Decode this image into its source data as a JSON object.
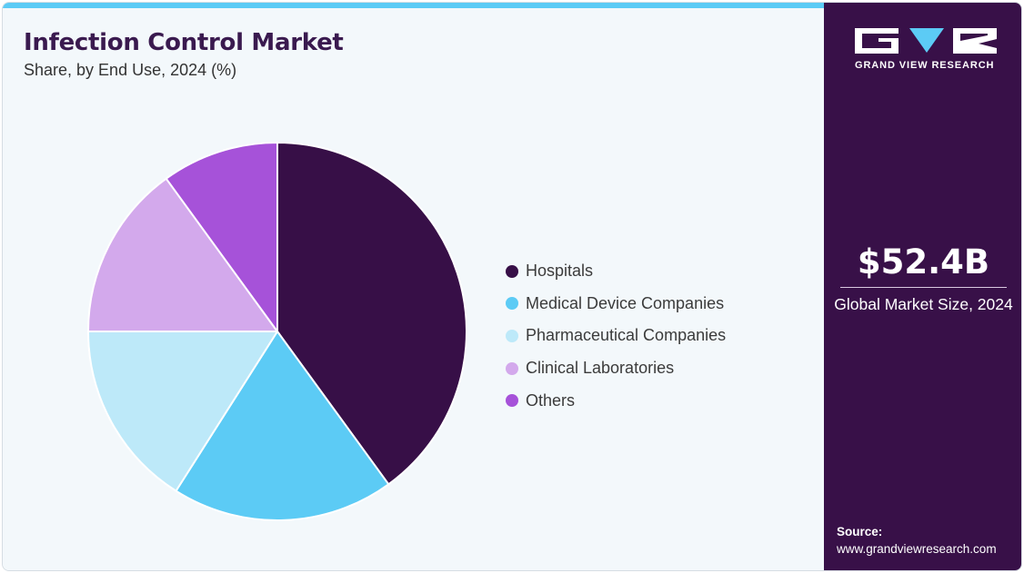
{
  "header": {
    "title": "Infection Control Market",
    "subtitle": "Share, by End Use, 2024 (%)"
  },
  "chart_data": {
    "type": "pie",
    "categories": [
      "Hospitals",
      "Medical Device Companies",
      "Pharmaceutical Companies",
      "Clinical Laboratories",
      "Others"
    ],
    "values": [
      40,
      19,
      16,
      15,
      10
    ],
    "colors": [
      "#370f47",
      "#5ccbf5",
      "#bde9f9",
      "#d3a9ec",
      "#a652d9"
    ],
    "start_angle_deg": 0,
    "direction": "clockwise",
    "legend_position": "right"
  },
  "legend": {
    "items": [
      {
        "label": "Hospitals",
        "color": "#370f47"
      },
      {
        "label": "Medical Device Companies",
        "color": "#5ccbf5"
      },
      {
        "label": "Pharmaceutical Companies",
        "color": "#bde9f9"
      },
      {
        "label": "Clinical Laboratories",
        "color": "#d3a9ec"
      },
      {
        "label": "Others",
        "color": "#a652d9"
      }
    ]
  },
  "sidebar": {
    "logo_text": "GRAND VIEW RESEARCH",
    "market_size": "$52.4B",
    "market_size_label": "Global Market Size, 2024",
    "source_title": "Source:",
    "source_url": "www.grandviewresearch.com"
  },
  "colors": {
    "brand_dark": "#381048",
    "accent": "#5ccbf5",
    "background": "#f3f8fb"
  }
}
